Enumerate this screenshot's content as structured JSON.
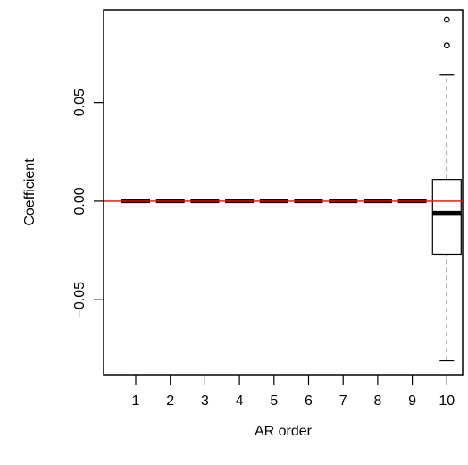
{
  "chart_data": {
    "type": "boxplot",
    "xlabel": "AR order",
    "ylabel": "Coefficient",
    "categories": [
      "1",
      "2",
      "3",
      "4",
      "5",
      "6",
      "7",
      "8",
      "9",
      "10"
    ],
    "ylim": [
      -0.088,
      0.097
    ],
    "yticks": [
      -0.05,
      0.0,
      0.05
    ],
    "ytick_labels": [
      "−0.05",
      "0.00",
      "0.05"
    ],
    "reference_line": {
      "y": 0,
      "color": "#ff0000"
    },
    "boxes": [
      {
        "label": "1",
        "whisker_low": 0,
        "q1": 0,
        "median": 0,
        "q3": 0,
        "whisker_high": 0,
        "outliers": []
      },
      {
        "label": "2",
        "whisker_low": 0,
        "q1": 0,
        "median": 0,
        "q3": 0,
        "whisker_high": 0,
        "outliers": []
      },
      {
        "label": "3",
        "whisker_low": 0,
        "q1": 0,
        "median": 0,
        "q3": 0,
        "whisker_high": 0,
        "outliers": []
      },
      {
        "label": "4",
        "whisker_low": 0,
        "q1": 0,
        "median": 0,
        "q3": 0,
        "whisker_high": 0,
        "outliers": []
      },
      {
        "label": "5",
        "whisker_low": 0,
        "q1": 0,
        "median": 0,
        "q3": 0,
        "whisker_high": 0,
        "outliers": []
      },
      {
        "label": "6",
        "whisker_low": 0,
        "q1": 0,
        "median": 0,
        "q3": 0,
        "whisker_high": 0,
        "outliers": []
      },
      {
        "label": "7",
        "whisker_low": 0,
        "q1": 0,
        "median": 0,
        "q3": 0,
        "whisker_high": 0,
        "outliers": []
      },
      {
        "label": "8",
        "whisker_low": 0,
        "q1": 0,
        "median": 0,
        "q3": 0,
        "whisker_high": 0,
        "outliers": []
      },
      {
        "label": "9",
        "whisker_low": 0,
        "q1": 0,
        "median": 0,
        "q3": 0,
        "whisker_high": 0,
        "outliers": []
      },
      {
        "label": "10",
        "whisker_low": -0.081,
        "q1": -0.027,
        "median": -0.006,
        "q3": 0.011,
        "whisker_high": 0.064,
        "outliers": [
          0.079,
          0.092
        ]
      }
    ],
    "grid": false
  }
}
